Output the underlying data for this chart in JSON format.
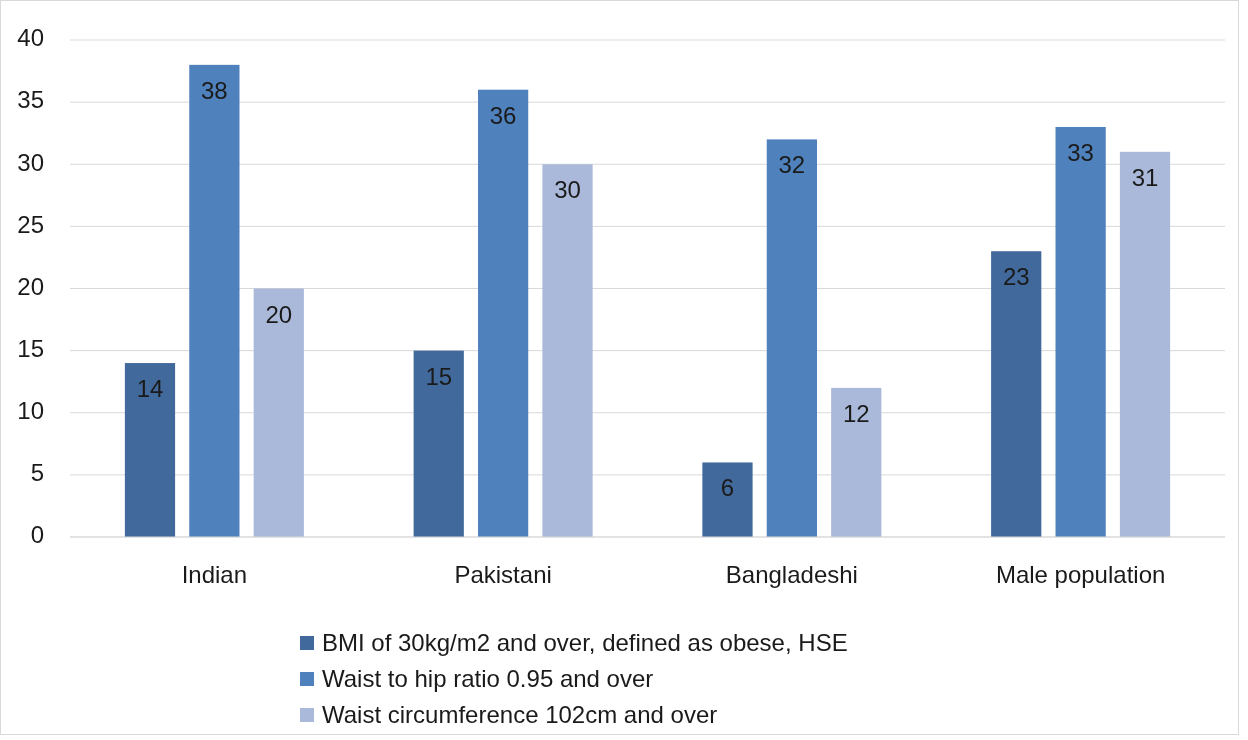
{
  "chart_data": {
    "type": "bar",
    "categories": [
      "Indian",
      "Pakistani",
      "Bangladeshi",
      "Male population"
    ],
    "series": [
      {
        "name": "BMI of 30kg/m2 and over, defined as obese, HSE",
        "color": "#41699c",
        "values": [
          14,
          15,
          6,
          23
        ]
      },
      {
        "name": "Waist to hip ratio 0.95 and over",
        "color": "#4f81bd",
        "values": [
          38,
          36,
          32,
          33
        ]
      },
      {
        "name": "Waist circumference 102cm and over",
        "color": "#aab9d9",
        "values": [
          20,
          30,
          12,
          31
        ]
      }
    ],
    "ylim": [
      0,
      40
    ],
    "yticks": [
      0,
      5,
      10,
      15,
      20,
      25,
      30,
      35,
      40
    ],
    "grid": "y",
    "legend": "bottom",
    "data_labels": true
  }
}
